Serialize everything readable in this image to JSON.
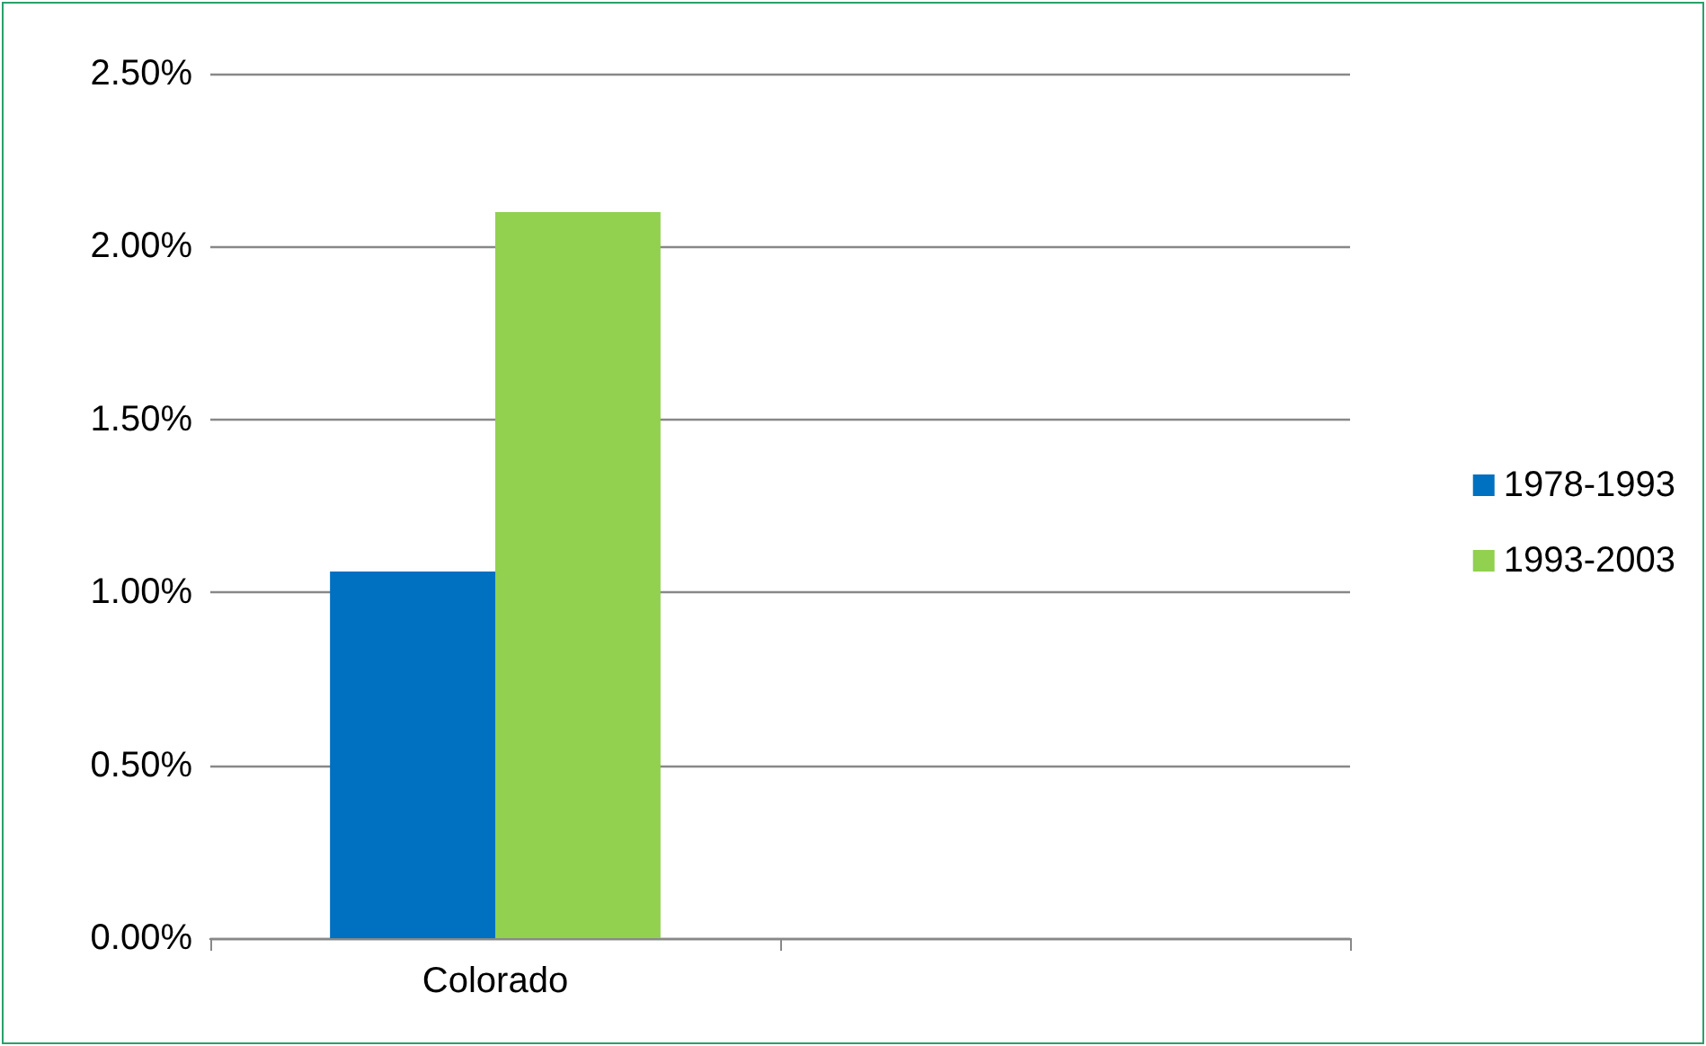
{
  "chart_data": {
    "type": "bar",
    "categories": [
      "Colorado",
      null
    ],
    "series": [
      {
        "name": "1978-1993",
        "color": "#0070c0",
        "values": [
          1.06,
          null
        ]
      },
      {
        "name": "1993-2003",
        "color": "#92d050",
        "values": [
          2.1,
          null
        ]
      }
    ],
    "ylim": [
      0,
      2.5
    ],
    "yticks": [
      {
        "value": 0,
        "label": "0.00%"
      },
      {
        "value": 0.5,
        "label": "0.50%"
      },
      {
        "value": 1,
        "label": "1.00%"
      },
      {
        "value": 1.5,
        "label": "1.50%"
      },
      {
        "value": 2,
        "label": "2.00%"
      },
      {
        "value": 2.5,
        "label": "2.50%"
      }
    ],
    "grid": "y",
    "legend": "right"
  }
}
